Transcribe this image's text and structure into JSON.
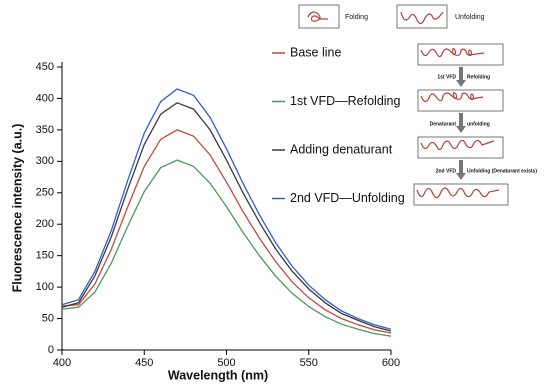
{
  "chart_data": {
    "type": "line",
    "xlabel": "Wavelength (nm)",
    "ylabel": "Fluorescence intensity (a.u.)",
    "x": [
      400,
      410,
      420,
      430,
      440,
      450,
      460,
      470,
      480,
      490,
      500,
      510,
      520,
      530,
      540,
      550,
      560,
      570,
      580,
      590,
      600
    ],
    "series": [
      {
        "name": "Base line",
        "color": "#c4493f",
        "values": [
          70,
          72,
          105,
          160,
          228,
          292,
          335,
          350,
          340,
          310,
          267,
          220,
          178,
          140,
          108,
          83,
          64,
          50,
          40,
          32,
          27
        ]
      },
      {
        "name": "1st VFD—Refolding",
        "color": "#4c9a5b",
        "values": [
          65,
          68,
          92,
          138,
          197,
          252,
          290,
          302,
          292,
          265,
          228,
          187,
          150,
          117,
          90,
          69,
          53,
          41,
          33,
          26,
          22
        ]
      },
      {
        "name": "Adding denaturant",
        "color": "#3a3a3a",
        "values": [
          68,
          75,
          118,
          180,
          256,
          327,
          375,
          393,
          383,
          350,
          302,
          250,
          203,
          160,
          125,
          97,
          75,
          58,
          47,
          37,
          30
        ]
      },
      {
        "name": "2nd VFD—Unfolding",
        "color": "#2f5fd0",
        "values": [
          72,
          80,
          125,
          190,
          270,
          345,
          395,
          415,
          405,
          370,
          320,
          265,
          215,
          170,
          133,
          103,
          80,
          62,
          50,
          40,
          33
        ]
      }
    ],
    "xlim": [
      400,
      600
    ],
    "xticks": [
      400,
      450,
      500,
      550,
      600
    ],
    "ylim": [
      0,
      450
    ],
    "yticks": [
      0,
      50,
      100,
      150,
      200,
      250,
      300,
      350,
      400,
      450
    ],
    "annotations": [
      "Folding",
      "Unfolding",
      "1st VFD",
      "Refolding",
      "Denaturant",
      "unfolding",
      "2nd VFD",
      "Unfolding (Denaturant exists)"
    ]
  }
}
